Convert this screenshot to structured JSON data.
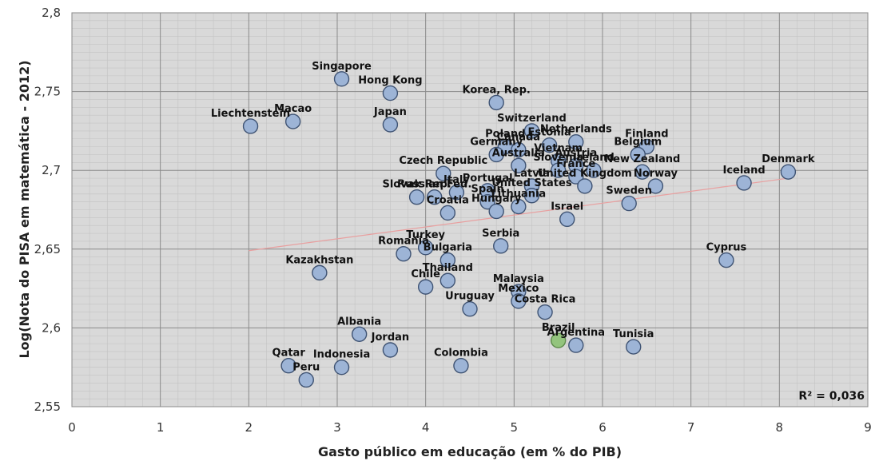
{
  "chart_data": {
    "type": "scatter",
    "xlabel": "Gasto público em educação (em % do PIB)",
    "ylabel": "Log(Nota do PISA em matemática - 2012)",
    "xlim": [
      0,
      9
    ],
    "ylim": [
      2.55,
      2.8
    ],
    "x_ticks": [
      "0",
      "1",
      "2",
      "3",
      "4",
      "5",
      "6",
      "7",
      "8",
      "9"
    ],
    "y_ticks": [
      "2,55",
      "2,6",
      "2,65",
      "2,7",
      "2,75",
      "2,8"
    ],
    "grid": true,
    "r_squared_label": "R² = 0,036",
    "trendline": {
      "x": [
        2.0,
        8.1
      ],
      "y": [
        2.649,
        2.695
      ]
    },
    "colors": {
      "point": "#9db4d6",
      "highlight": "#93c47d",
      "trend": "#e8a0a0",
      "plot_bg": "#d9d9d9"
    },
    "points": [
      {
        "label": "Singapore",
        "x": 3.05,
        "y": 2.758
      },
      {
        "label": "Hong Kong",
        "x": 3.6,
        "y": 2.749
      },
      {
        "label": "Korea, Rep.",
        "x": 4.8,
        "y": 2.743
      },
      {
        "label": "Macao",
        "x": 2.5,
        "y": 2.731
      },
      {
        "label": "Liechtenstein",
        "x": 2.02,
        "y": 2.728
      },
      {
        "label": "Japan",
        "x": 3.6,
        "y": 2.729
      },
      {
        "label": "Switzerland",
        "x": 5.2,
        "y": 2.725
      },
      {
        "label": "Netherlands",
        "x": 5.7,
        "y": 2.718
      },
      {
        "label": "Finland",
        "x": 6.5,
        "y": 2.715
      },
      {
        "label": "Estonia",
        "x": 5.4,
        "y": 2.716
      },
      {
        "label": "Poland",
        "x": 4.9,
        "y": 2.715
      },
      {
        "label": "Canada",
        "x": 5.05,
        "y": 2.713
      },
      {
        "label": "Belgium",
        "x": 6.4,
        "y": 2.71
      },
      {
        "label": "Germany",
        "x": 4.8,
        "y": 2.71
      },
      {
        "label": "Vietnam",
        "x": 5.5,
        "y": 2.706
      },
      {
        "label": "Austria",
        "x": 5.7,
        "y": 2.703
      },
      {
        "label": "Australia",
        "x": 5.05,
        "y": 2.703
      },
      {
        "label": "Slovenia",
        "x": 5.5,
        "y": 2.7
      },
      {
        "label": "Ireland",
        "x": 5.9,
        "y": 2.7
      },
      {
        "label": "New Zealand",
        "x": 6.45,
        "y": 2.699
      },
      {
        "label": "Denmark",
        "x": 8.1,
        "y": 2.699
      },
      {
        "label": "Czech Republic",
        "x": 4.2,
        "y": 2.698
      },
      {
        "label": "France",
        "x": 5.7,
        "y": 2.696
      },
      {
        "label": "Iceland",
        "x": 7.6,
        "y": 2.692
      },
      {
        "label": "Latvia",
        "x": 5.2,
        "y": 2.69
      },
      {
        "label": "Norway",
        "x": 6.6,
        "y": 2.69
      },
      {
        "label": "United Kingdom",
        "x": 5.8,
        "y": 2.69
      },
      {
        "label": "Italy",
        "x": 4.35,
        "y": 2.686
      },
      {
        "label": "Portugal",
        "x": 4.7,
        "y": 2.687
      },
      {
        "label": "United States",
        "x": 5.2,
        "y": 2.684
      },
      {
        "label": "Russian Fed.",
        "x": 4.1,
        "y": 2.683
      },
      {
        "label": "Slovak Rep.",
        "x": 3.9,
        "y": 2.683
      },
      {
        "label": "Sweden",
        "x": 6.3,
        "y": 2.679
      },
      {
        "label": "Spain",
        "x": 4.7,
        "y": 2.68
      },
      {
        "label": "Lithuania",
        "x": 5.05,
        "y": 2.677
      },
      {
        "label": "Croatia",
        "x": 4.25,
        "y": 2.673
      },
      {
        "label": "Hungary",
        "x": 4.8,
        "y": 2.674
      },
      {
        "label": "Israel",
        "x": 5.6,
        "y": 2.669
      },
      {
        "label": "Serbia",
        "x": 4.85,
        "y": 2.652
      },
      {
        "label": "Turkey",
        "x": 4.0,
        "y": 2.651
      },
      {
        "label": "Romania",
        "x": 3.75,
        "y": 2.647
      },
      {
        "label": "Bulgaria",
        "x": 4.25,
        "y": 2.643
      },
      {
        "label": "Cyprus",
        "x": 7.4,
        "y": 2.643
      },
      {
        "label": "Kazakhstan",
        "x": 2.8,
        "y": 2.635
      },
      {
        "label": "Thailand",
        "x": 4.25,
        "y": 2.63
      },
      {
        "label": "Chile",
        "x": 4.0,
        "y": 2.626
      },
      {
        "label": "Malaysia",
        "x": 5.05,
        "y": 2.623
      },
      {
        "label": "Mexico",
        "x": 5.05,
        "y": 2.617
      },
      {
        "label": "Uruguay",
        "x": 4.5,
        "y": 2.612
      },
      {
        "label": "Costa Rica",
        "x": 5.35,
        "y": 2.61
      },
      {
        "label": "Albania",
        "x": 3.25,
        "y": 2.596
      },
      {
        "label": "Brazil",
        "x": 5.5,
        "y": 2.592,
        "highlight": true
      },
      {
        "label": "Argentina",
        "x": 5.7,
        "y": 2.589
      },
      {
        "label": "Tunisia",
        "x": 6.35,
        "y": 2.588
      },
      {
        "label": "Jordan",
        "x": 3.6,
        "y": 2.586
      },
      {
        "label": "Qatar",
        "x": 2.45,
        "y": 2.576
      },
      {
        "label": "Colombia",
        "x": 4.4,
        "y": 2.576
      },
      {
        "label": "Indonesia",
        "x": 3.05,
        "y": 2.575
      },
      {
        "label": "Peru",
        "x": 2.65,
        "y": 2.567
      }
    ]
  }
}
